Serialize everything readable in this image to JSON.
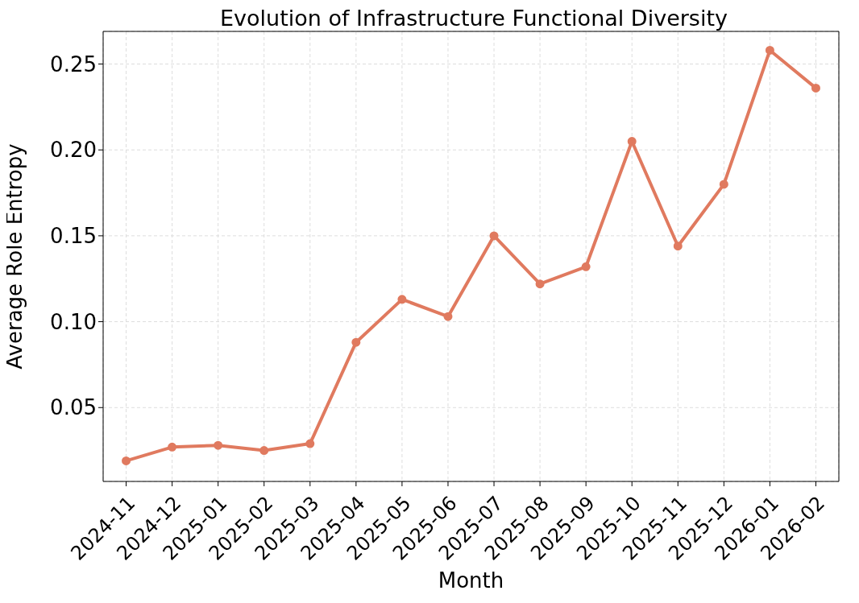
{
  "chart_data": {
    "type": "line",
    "title": "Evolution of Infrastructure Functional Diversity",
    "xlabel": "Month",
    "ylabel": "Average Role Entropy",
    "categories": [
      "2024-11",
      "2024-12",
      "2025-01",
      "2025-02",
      "2025-03",
      "2025-04",
      "2025-05",
      "2025-06",
      "2025-07",
      "2025-08",
      "2025-09",
      "2025-10",
      "2025-11",
      "2025-12",
      "2026-01",
      "2026-02"
    ],
    "values": [
      0.019,
      0.027,
      0.028,
      0.025,
      0.029,
      0.088,
      0.113,
      0.103,
      0.15,
      0.122,
      0.132,
      0.205,
      0.144,
      0.18,
      0.258,
      0.236
    ],
    "color": "#e07a5f",
    "ylim": [
      0.007,
      0.269
    ],
    "yticks": [
      {
        "value": 0.05,
        "label": "0.05"
      },
      {
        "value": 0.1,
        "label": "0.10"
      },
      {
        "value": 0.15,
        "label": "0.15"
      },
      {
        "value": 0.2,
        "label": "0.20"
      },
      {
        "value": 0.25,
        "label": "0.25"
      }
    ],
    "grid": true,
    "marker": "circle",
    "line_style": "solid"
  }
}
